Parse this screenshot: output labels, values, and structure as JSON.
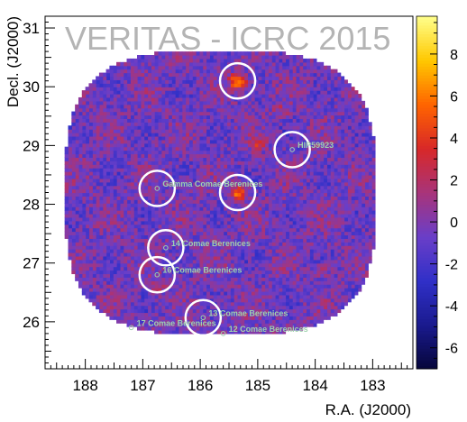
{
  "watermark": "VERITAS - ICRC 2015",
  "chart_data": {
    "type": "heatmap",
    "xlabel": "R.A. (J2000)",
    "ylabel": "Decl. (J2000)",
    "xlim": [
      182.3,
      188.7
    ],
    "ylim": [
      25.2,
      31.2
    ],
    "x_reversed": true,
    "x_ticks": [
      188,
      187,
      186,
      185,
      184,
      183
    ],
    "y_ticks": [
      26,
      27,
      28,
      29,
      30,
      31
    ],
    "colorbar": {
      "range": [
        -7,
        9.8
      ],
      "ticks": [
        -6,
        -4,
        -2,
        0,
        2,
        4,
        6,
        8
      ],
      "colors": [
        "#06063a",
        "#1a1a8e",
        "#3030c8",
        "#6a3ec8",
        "#a8347a",
        "#d82828",
        "#ff6400",
        "#ffc800",
        "#ffff8c"
      ]
    },
    "field_center": {
      "ra": 185.65,
      "dec": 28.2
    },
    "hotspots": [
      {
        "ra": 185.35,
        "dec": 30.1,
        "value": 8
      },
      {
        "ra": 185.35,
        "dec": 28.2,
        "value": 6
      },
      {
        "ra": 185.0,
        "dec": 29.05,
        "value": 3
      },
      {
        "ra": 184.6,
        "dec": 29.6,
        "value": 2
      },
      {
        "ra": 186.75,
        "dec": 26.6,
        "value": 2
      },
      {
        "ra": 183.9,
        "dec": 26.9,
        "value": 2
      }
    ],
    "sources": [
      {
        "label": "Gamma Comae Berenices",
        "ra": 186.75,
        "dec": 28.27,
        "label_side": "right"
      },
      {
        "label": "HIP59923",
        "ra": 184.4,
        "dec": 28.93,
        "label_side": "right"
      },
      {
        "label": "14 Comae Berenices",
        "ra": 186.6,
        "dec": 27.26,
        "label_side": "right"
      },
      {
        "label": "16 Comae Berenices",
        "ra": 186.75,
        "dec": 26.8,
        "label_side": "right"
      },
      {
        "label": "13 Comae Berenices",
        "ra": 185.95,
        "dec": 26.07,
        "label_side": "right"
      },
      {
        "label": "17 Comae Berenices",
        "ra": 187.2,
        "dec": 25.9,
        "label_side": "right"
      },
      {
        "label": "12 Comae Berenices",
        "ra": 185.6,
        "dec": 25.8,
        "label_side": "right"
      }
    ],
    "exclusion_regions": [
      {
        "ra": 185.35,
        "dec": 30.1,
        "radius_deg": 0.3
      },
      {
        "ra": 185.35,
        "dec": 28.2,
        "radius_deg": 0.3
      },
      {
        "ra": 184.4,
        "dec": 28.93,
        "radius_deg": 0.3
      },
      {
        "ra": 186.75,
        "dec": 28.27,
        "radius_deg": 0.3
      },
      {
        "ra": 186.6,
        "dec": 27.26,
        "radius_deg": 0.3
      },
      {
        "ra": 186.75,
        "dec": 26.8,
        "radius_deg": 0.3
      },
      {
        "ra": 185.95,
        "dec": 26.07,
        "radius_deg": 0.3
      }
    ]
  }
}
